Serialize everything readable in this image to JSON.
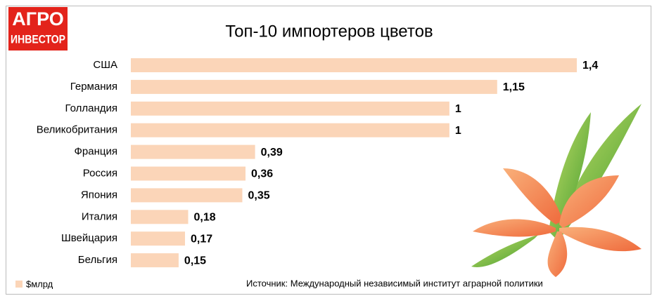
{
  "logo": {
    "line1": "АГРО",
    "line2": "ИНВЕСТОР"
  },
  "chart_data": {
    "type": "bar",
    "orientation": "horizontal",
    "title": "Топ-10 импортеров цветов",
    "categories": [
      "США",
      "Германия",
      "Голландия",
      "Великобритания",
      "Франция",
      "Россия",
      "Япония",
      "Италия",
      "Швейцария",
      "Бельгия"
    ],
    "series": [
      {
        "name": "$млрд",
        "color": "#fbd5b8",
        "values": [
          1.4,
          1.15,
          1,
          1,
          0.39,
          0.36,
          0.35,
          0.18,
          0.17,
          0.15
        ],
        "value_labels": [
          "1,4",
          "1,15",
          "1",
          "1",
          "0,39",
          "0,36",
          "0,35",
          "0,18",
          "0,17",
          "0,15"
        ]
      }
    ],
    "source": "Источник: Международный независимый институт аграрной политики"
  }
}
